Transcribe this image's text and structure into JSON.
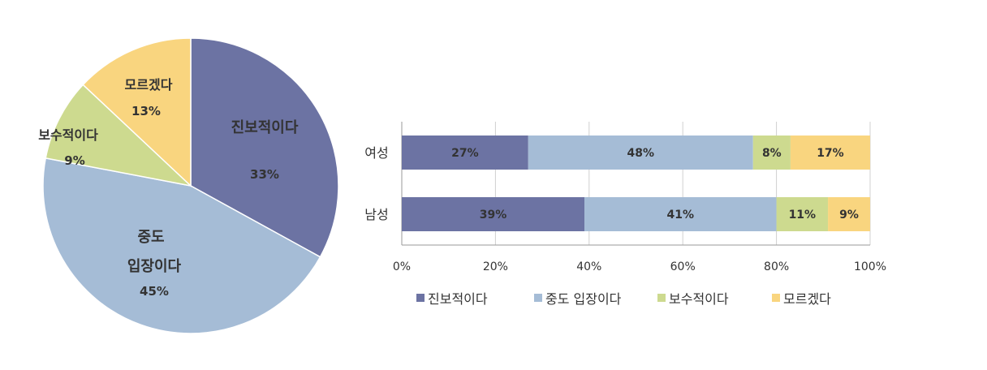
{
  "chart_data": [
    {
      "type": "pie",
      "slices": [
        {
          "label": "진보적이다",
          "value": 33,
          "value_label": "33%",
          "color": "#6c73a3"
        },
        {
          "label_lines": [
            "중도",
            "입장이다"
          ],
          "value": 45,
          "value_label": "45%",
          "color": "#a5bcd6"
        },
        {
          "label": "보수적이다",
          "value": 9,
          "value_label": "9%",
          "color": "#cdda8f"
        },
        {
          "label": "모르겠다",
          "value": 13,
          "value_label": "13%",
          "color": "#f9d57f"
        }
      ]
    },
    {
      "type": "bar",
      "orientation": "horizontal",
      "stacked": "percent",
      "categories": [
        "여성",
        "남성"
      ],
      "series": [
        {
          "name": "진보적이다",
          "values": [
            27,
            39
          ],
          "labels": [
            "27%",
            "39%"
          ],
          "color": "#6c73a3"
        },
        {
          "name": "중도 입장이다",
          "values": [
            48,
            41
          ],
          "labels": [
            "48%",
            "41%"
          ],
          "color": "#a5bcd6"
        },
        {
          "name": "보수적이다",
          "values": [
            8,
            11
          ],
          "labels": [
            "8%",
            "11%"
          ],
          "color": "#cdda8f"
        },
        {
          "name": "모르겠다",
          "values": [
            17,
            9
          ],
          "labels": [
            "17%",
            "9%"
          ],
          "color": "#f9d57f"
        }
      ],
      "xlim": [
        0,
        100
      ],
      "xticks": [
        "0%",
        "20%",
        "40%",
        "60%",
        "80%",
        "100%"
      ],
      "grid": true,
      "legend": "bottom"
    }
  ]
}
